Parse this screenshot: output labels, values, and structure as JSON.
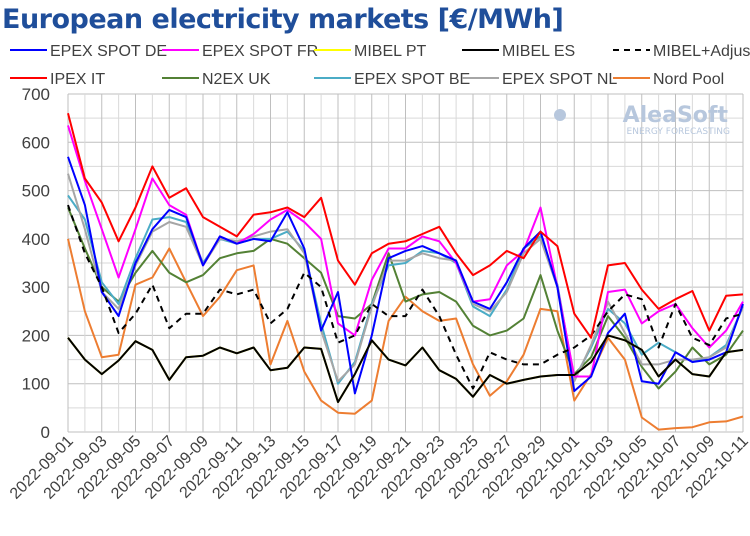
{
  "chart_data": {
    "type": "line",
    "title": "European electricity markets [€/MWh]",
    "logo": "AleaSoft ENERGY FORECASTING",
    "ylim": [
      0,
      700
    ],
    "yticks": [
      0,
      100,
      200,
      300,
      400,
      500,
      600,
      700
    ],
    "grid": true,
    "legend_position": "top",
    "x": [
      "2022-09-01",
      "2022-09-02",
      "2022-09-03",
      "2022-09-04",
      "2022-09-05",
      "2022-09-06",
      "2022-09-07",
      "2022-09-08",
      "2022-09-09",
      "2022-09-10",
      "2022-09-11",
      "2022-09-12",
      "2022-09-13",
      "2022-09-14",
      "2022-09-15",
      "2022-09-16",
      "2022-09-17",
      "2022-09-18",
      "2022-09-19",
      "2022-09-20",
      "2022-09-21",
      "2022-09-22",
      "2022-09-23",
      "2022-09-24",
      "2022-09-25",
      "2022-09-26",
      "2022-09-27",
      "2022-09-28",
      "2022-09-29",
      "2022-09-30",
      "2022-10-01",
      "2022-10-02",
      "2022-10-03",
      "2022-10-04",
      "2022-10-05",
      "2022-10-06",
      "2022-10-07",
      "2022-10-08",
      "2022-10-09",
      "2022-10-10",
      "2022-10-11"
    ],
    "xtick_labels": [
      "2022-09-01",
      "2022-09-03",
      "2022-09-05",
      "2022-09-07",
      "2022-09-09",
      "2022-09-11",
      "2022-09-13",
      "2022-09-15",
      "2022-09-17",
      "2022-09-19",
      "2022-09-21",
      "2022-09-23",
      "2022-09-25",
      "2022-09-27",
      "2022-09-29",
      "2022-10-01",
      "2022-10-03",
      "2022-10-05",
      "2022-10-07",
      "2022-10-09",
      "2022-10-11"
    ],
    "series": [
      {
        "name": "EPEX SPOT DE",
        "color": "#0000ff",
        "dash": false,
        "values": [
          570,
          470,
          290,
          240,
          350,
          420,
          460,
          445,
          345,
          405,
          390,
          400,
          395,
          455,
          380,
          210,
          290,
          80,
          200,
          360,
          375,
          385,
          370,
          355,
          270,
          255,
          310,
          380,
          415,
          300,
          85,
          115,
          205,
          245,
          105,
          100,
          165,
          145,
          150,
          165,
          265
        ]
      },
      {
        "name": "EPEX SPOT FR",
        "color": "#ff00ff",
        "dash": false,
        "values": [
          635,
          520,
          420,
          320,
          420,
          525,
          470,
          450,
          345,
          405,
          390,
          410,
          440,
          460,
          435,
          400,
          225,
          200,
          315,
          380,
          380,
          405,
          395,
          350,
          270,
          275,
          345,
          375,
          465,
          300,
          115,
          115,
          290,
          295,
          225,
          250,
          265,
          215,
          175,
          210,
          270
        ]
      },
      {
        "name": "MIBEL PT",
        "color": "#ffff00",
        "dash": false,
        "values": [
          195,
          150,
          120,
          148,
          188,
          170,
          108,
          155,
          158,
          175,
          163,
          175,
          128,
          133,
          175,
          172,
          62,
          120,
          190,
          150,
          138,
          175,
          128,
          110,
          73,
          118,
          100,
          108,
          115,
          118,
          118,
          145,
          200,
          190,
          170,
          115,
          150,
          120,
          115,
          165,
          170
        ]
      },
      {
        "name": "MIBEL ES",
        "color": "#000000",
        "dash": false,
        "values": [
          195,
          150,
          120,
          148,
          188,
          170,
          108,
          155,
          158,
          175,
          163,
          175,
          128,
          133,
          175,
          172,
          62,
          120,
          190,
          150,
          138,
          175,
          128,
          110,
          73,
          118,
          100,
          108,
          115,
          118,
          118,
          145,
          200,
          190,
          170,
          115,
          150,
          120,
          115,
          165,
          170
        ]
      },
      {
        "name": "MIBEL+Adjust",
        "color": "#000000",
        "dash": true,
        "values": [
          470,
          370,
          300,
          205,
          245,
          305,
          215,
          245,
          245,
          295,
          285,
          295,
          225,
          255,
          330,
          300,
          185,
          200,
          265,
          240,
          240,
          295,
          240,
          160,
          90,
          165,
          150,
          140,
          140,
          160,
          175,
          200,
          250,
          285,
          275,
          175,
          265,
          195,
          180,
          235,
          245
        ]
      },
      {
        "name": "IPEX IT",
        "color": "#ff0000",
        "dash": false,
        "values": [
          660,
          525,
          475,
          395,
          465,
          550,
          485,
          505,
          445,
          425,
          405,
          450,
          455,
          465,
          445,
          485,
          355,
          305,
          370,
          390,
          395,
          410,
          425,
          370,
          325,
          345,
          375,
          360,
          415,
          385,
          245,
          195,
          345,
          350,
          295,
          255,
          275,
          292,
          210,
          282,
          285
        ]
      },
      {
        "name": "N2EX UK",
        "color": "#538135",
        "dash": false,
        "values": [
          465,
          380,
          300,
          270,
          330,
          375,
          330,
          310,
          325,
          360,
          370,
          375,
          400,
          390,
          360,
          330,
          240,
          235,
          265,
          370,
          270,
          285,
          290,
          270,
          220,
          200,
          210,
          235,
          325,
          210,
          120,
          155,
          240,
          195,
          135,
          90,
          125,
          175,
          140,
          160,
          210
        ]
      },
      {
        "name": "EPEX SPOT BE",
        "color": "#4bacc6",
        "dash": false,
        "values": [
          490,
          440,
          310,
          265,
          360,
          440,
          445,
          435,
          350,
          400,
          390,
          400,
          400,
          415,
          375,
          225,
          100,
          145,
          265,
          345,
          350,
          375,
          370,
          350,
          260,
          240,
          295,
          380,
          405,
          305,
          110,
          175,
          255,
          225,
          160,
          185,
          165,
          145,
          155,
          180,
          260
        ]
      },
      {
        "name": "EPEX SPOT NL",
        "color": "#a6a6a6",
        "dash": false,
        "values": [
          535,
          420,
          290,
          255,
          345,
          415,
          435,
          425,
          345,
          400,
          395,
          405,
          415,
          420,
          370,
          210,
          105,
          140,
          260,
          355,
          355,
          370,
          360,
          355,
          265,
          250,
          290,
          370,
          400,
          300,
          105,
          180,
          270,
          205,
          140,
          140,
          150,
          150,
          155,
          175,
          260
        ]
      },
      {
        "name": "Nord Pool",
        "color": "#ed7d31",
        "dash": false,
        "values": [
          400,
          250,
          155,
          160,
          305,
          320,
          380,
          310,
          240,
          280,
          335,
          345,
          140,
          230,
          125,
          65,
          40,
          38,
          65,
          230,
          280,
          250,
          230,
          235,
          140,
          75,
          105,
          160,
          255,
          250,
          65,
          120,
          195,
          150,
          30,
          5,
          8,
          10,
          20,
          22,
          32
        ]
      }
    ]
  }
}
